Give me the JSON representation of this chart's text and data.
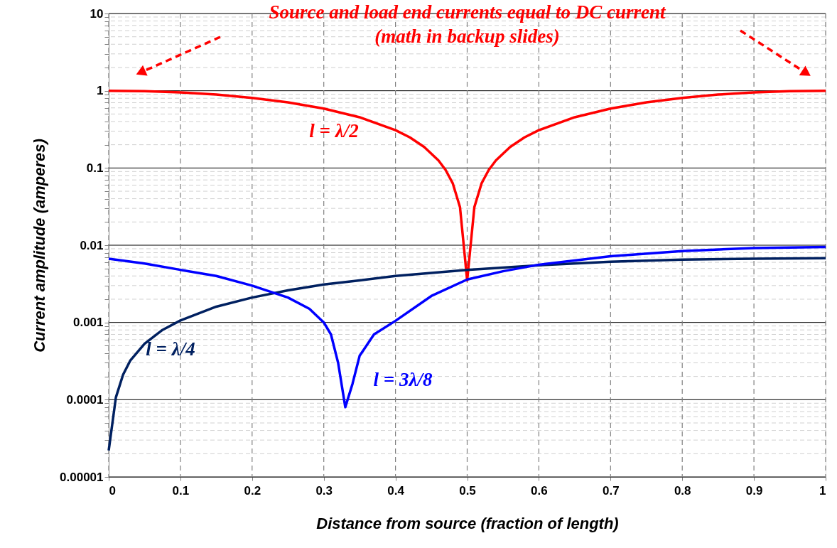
{
  "chart_data": {
    "type": "line",
    "xlabel": "Distance from source (fraction of length)",
    "ylabel": "Current amplitude (amperes)",
    "annotations": [
      "Source and load end currents equal to DC current\n(math in backup slides)"
    ],
    "log": true,
    "grid": true,
    "line_style": "solid",
    "marker": "none",
    "xlim": [
      0,
      1
    ],
    "xticks": [
      0,
      0.1,
      0.2,
      0.3,
      0.4,
      0.5,
      0.6,
      0.7,
      0.8,
      0.9,
      1
    ],
    "ylim": [
      1e-05,
      10
    ],
    "yticks": [
      {
        "value": 1e-05,
        "label": "0.00001"
      },
      {
        "value": 2e-05,
        "label": null
      },
      {
        "value": 3e-05,
        "label": null
      },
      {
        "value": 4e-05,
        "label": null
      },
      {
        "value": 5e-05,
        "label": null
      },
      {
        "value": 6e-05,
        "label": null
      },
      {
        "value": 7e-05,
        "label": null
      },
      {
        "value": 8e-05,
        "label": null
      },
      {
        "value": 9e-05,
        "label": null
      },
      0.0001,
      {
        "value": 0.0002,
        "label": null
      },
      {
        "value": 0.0003,
        "label": null
      },
      {
        "value": 0.0004,
        "label": null
      },
      {
        "value": 0.0005,
        "label": null
      },
      {
        "value": 0.0006,
        "label": null
      },
      {
        "value": 0.0007,
        "label": null
      },
      {
        "value": 0.0008,
        "label": null
      },
      {
        "value": 0.0009,
        "label": null
      },
      0.001,
      {
        "value": 0.002,
        "label": null
      },
      {
        "value": 0.003,
        "label": null
      },
      {
        "value": 0.004,
        "label": null
      },
      {
        "value": 0.005,
        "label": null
      },
      {
        "value": 0.006,
        "label": null
      },
      {
        "value": 0.007,
        "label": null
      },
      {
        "value": 0.008,
        "label": null
      },
      {
        "value": 0.009,
        "label": null
      },
      0.01,
      {
        "value": 0.02,
        "label": null
      },
      {
        "value": 0.03,
        "label": null
      },
      {
        "value": 0.04,
        "label": null
      },
      {
        "value": 0.05,
        "label": null
      },
      {
        "value": 0.06,
        "label": null
      },
      {
        "value": 0.07,
        "label": null
      },
      {
        "value": 0.08,
        "label": null
      },
      {
        "value": 0.09,
        "label": null
      },
      0.1,
      {
        "value": 0.2,
        "label": null
      },
      {
        "value": 0.3,
        "label": null
      },
      {
        "value": 0.4,
        "label": null
      },
      {
        "value": 0.5,
        "label": null
      },
      {
        "value": 0.6,
        "label": null
      },
      {
        "value": 0.7,
        "label": null
      },
      {
        "value": 0.8,
        "label": null
      },
      {
        "value": 0.9,
        "label": null
      },
      1,
      {
        "value": 2,
        "label": null
      },
      {
        "value": 3,
        "label": null
      },
      {
        "value": 4,
        "label": null
      },
      {
        "value": 5,
        "label": null
      },
      {
        "value": 6,
        "label": null
      },
      {
        "value": 7,
        "label": null
      },
      {
        "value": 8,
        "label": null
      },
      {
        "value": 9,
        "label": null
      },
      10
    ],
    "series": [
      {
        "name": "l = λ/2",
        "color": "#ff0000",
        "x": [
          0,
          0.05,
          0.1,
          0.15,
          0.2,
          0.25,
          0.3,
          0.35,
          0.4,
          0.42,
          0.44,
          0.46,
          0.47,
          0.48,
          0.49,
          0.5,
          0.51,
          0.52,
          0.53,
          0.54,
          0.56,
          0.58,
          0.6,
          0.65,
          0.7,
          0.75,
          0.8,
          0.85,
          0.9,
          0.95,
          1
        ],
        "values": [
          1,
          0.988,
          0.951,
          0.891,
          0.809,
          0.707,
          0.588,
          0.454,
          0.309,
          0.249,
          0.187,
          0.125,
          0.094,
          0.063,
          0.031,
          0.0035,
          0.031,
          0.063,
          0.094,
          0.125,
          0.187,
          0.249,
          0.309,
          0.454,
          0.588,
          0.707,
          0.809,
          0.891,
          0.951,
          0.988,
          1
        ]
      },
      {
        "name": "l = λ/4",
        "color": "#002060",
        "x": [
          0,
          0.01,
          0.02,
          0.03,
          0.05,
          0.075,
          0.1,
          0.15,
          0.2,
          0.25,
          0.3,
          0.35,
          0.4,
          0.5,
          0.6,
          0.7,
          0.8,
          0.9,
          1
        ],
        "values": [
          2.2e-05,
          0.000107,
          0.00021,
          0.00032,
          0.00053,
          0.0008,
          0.00106,
          0.0016,
          0.0021,
          0.0026,
          0.0031,
          0.0035,
          0.004,
          0.0048,
          0.0055,
          0.0061,
          0.0065,
          0.0067,
          0.0068
        ]
      },
      {
        "name": "l = 3λ/8",
        "color": "#0000ff",
        "x": [
          0,
          0.05,
          0.1,
          0.15,
          0.2,
          0.25,
          0.28,
          0.3,
          0.31,
          0.32,
          0.33,
          0.34,
          0.35,
          0.37,
          0.4,
          0.45,
          0.5,
          0.55,
          0.6,
          0.7,
          0.8,
          0.9,
          1
        ],
        "values": [
          0.0067,
          0.0058,
          0.0048,
          0.004,
          0.003,
          0.0021,
          0.0015,
          0.001,
          0.0007,
          0.0003,
          8e-05,
          0.00016,
          0.00037,
          0.0007,
          0.00105,
          0.0022,
          0.0036,
          0.0046,
          0.0056,
          0.0072,
          0.0084,
          0.0092,
          0.0095
        ]
      }
    ]
  }
}
